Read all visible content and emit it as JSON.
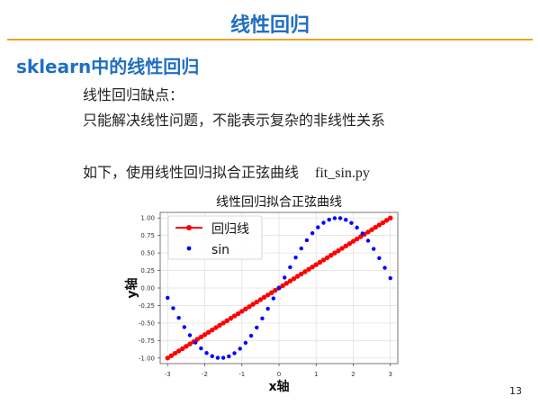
{
  "slide": {
    "title": "线性回归",
    "subtitle": "sklearn中的线性回归",
    "line1": "线性回归缺点：",
    "line2": "只能解决线性问题，不能表示复杂的非线性关系",
    "line3": "如下，使用线性回归拟合正弦曲线",
    "filename": "fit_sin.py",
    "page_number": "13"
  },
  "chart_data": {
    "type": "scatter",
    "title": "线性回归拟合正弦曲线",
    "xlabel": "x轴",
    "ylabel": "y轴",
    "xlim": [
      -3.2,
      3.2
    ],
    "ylim": [
      -1.08,
      1.08
    ],
    "xticks": [
      -3,
      -2,
      -1,
      0,
      1,
      2,
      3
    ],
    "xtick_labels": [
      "-3",
      "-2",
      "-1",
      "0",
      "1",
      "2",
      "3"
    ],
    "yticks": [
      -1.0,
      -0.75,
      -0.5,
      -0.25,
      0.0,
      0.25,
      0.5,
      0.75,
      1.0
    ],
    "ytick_labels": [
      "-1.00",
      "-0.75",
      "-0.50",
      "-0.25",
      "0.00",
      "0.25",
      "0.50",
      "0.75",
      "1.00"
    ],
    "grid": true,
    "legend_position": "upper-left",
    "series": [
      {
        "name": "回归线",
        "style": "line-with-markers",
        "color": "#ff0000",
        "x": [
          -3.0,
          -2.9,
          -2.8,
          -2.7,
          -2.6,
          -2.5,
          -2.4,
          -2.3,
          -2.2,
          -2.1,
          -2.0,
          -1.9,
          -1.8,
          -1.7,
          -1.6,
          -1.5,
          -1.4,
          -1.3,
          -1.2,
          -1.1,
          -1.0,
          -0.9,
          -0.8,
          -0.7,
          -0.6,
          -0.5,
          -0.4,
          -0.3,
          -0.2,
          -0.1,
          0.0,
          0.1,
          0.2,
          0.3,
          0.4,
          0.5,
          0.6,
          0.7,
          0.8,
          0.9,
          1.0,
          1.1,
          1.2,
          1.3,
          1.4,
          1.5,
          1.6,
          1.7,
          1.8,
          1.9,
          2.0,
          2.1,
          2.2,
          2.3,
          2.4,
          2.5,
          2.6,
          2.7,
          2.8,
          2.9,
          3.0
        ],
        "y": [
          -1.0,
          -0.967,
          -0.933,
          -0.9,
          -0.867,
          -0.833,
          -0.8,
          -0.767,
          -0.733,
          -0.7,
          -0.667,
          -0.633,
          -0.6,
          -0.567,
          -0.533,
          -0.5,
          -0.467,
          -0.433,
          -0.4,
          -0.367,
          -0.333,
          -0.3,
          -0.267,
          -0.233,
          -0.2,
          -0.167,
          -0.133,
          -0.1,
          -0.067,
          -0.033,
          0.0,
          0.033,
          0.067,
          0.1,
          0.133,
          0.167,
          0.2,
          0.233,
          0.267,
          0.3,
          0.333,
          0.367,
          0.4,
          0.433,
          0.467,
          0.5,
          0.533,
          0.567,
          0.6,
          0.633,
          0.667,
          0.7,
          0.733,
          0.767,
          0.8,
          0.833,
          0.867,
          0.9,
          0.933,
          0.967,
          1.0
        ]
      },
      {
        "name": "sin",
        "style": "markers",
        "color": "#0000ff",
        "x": [
          -3.0,
          -2.85,
          -2.7,
          -2.55,
          -2.4,
          -2.25,
          -2.1,
          -1.95,
          -1.8,
          -1.65,
          -1.5,
          -1.35,
          -1.2,
          -1.05,
          -0.9,
          -0.75,
          -0.6,
          -0.45,
          -0.3,
          -0.15,
          0.0,
          0.15,
          0.3,
          0.45,
          0.6,
          0.75,
          0.9,
          1.05,
          1.2,
          1.35,
          1.5,
          1.65,
          1.8,
          1.95,
          2.1,
          2.25,
          2.4,
          2.55,
          2.7,
          2.85,
          3.0
        ],
        "y": [
          -0.141,
          -0.288,
          -0.427,
          -0.558,
          -0.675,
          -0.778,
          -0.863,
          -0.929,
          -0.974,
          -0.997,
          -0.997,
          -0.976,
          -0.932,
          -0.867,
          -0.783,
          -0.682,
          -0.565,
          -0.435,
          -0.296,
          -0.149,
          0.0,
          0.149,
          0.296,
          0.435,
          0.565,
          0.682,
          0.783,
          0.867,
          0.932,
          0.976,
          0.997,
          0.997,
          0.974,
          0.929,
          0.863,
          0.778,
          0.675,
          0.558,
          0.427,
          0.288,
          0.141
        ]
      }
    ]
  }
}
